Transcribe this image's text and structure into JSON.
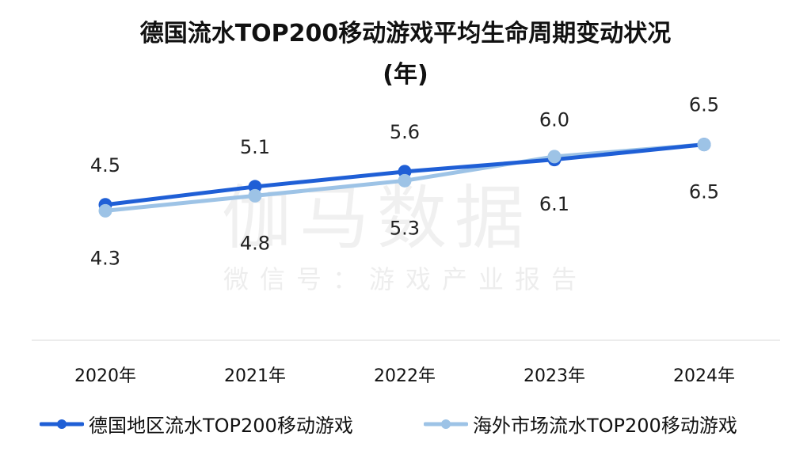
{
  "chart_data": {
    "type": "line",
    "title": "德国流水TOP200移动游戏平均生命周期变动状况",
    "subtitle": "(年)",
    "categories": [
      "2020年",
      "2021年",
      "2022年",
      "2023年",
      "2024年"
    ],
    "series": [
      {
        "name": "德国地区流水TOP200移动游戏",
        "values": [
          4.5,
          5.1,
          5.6,
          6.0,
          6.5
        ],
        "color": "#1f5fd6",
        "label_position": "above"
      },
      {
        "name": "海外市场流水TOP200移动游戏",
        "values": [
          4.3,
          4.8,
          5.3,
          6.1,
          6.5
        ],
        "color": "#9dc3e6",
        "label_position": "below"
      }
    ],
    "xlabel": "",
    "ylabel": "",
    "ylim": [
      0,
      11.3
    ],
    "grid": false,
    "legend": "bottom"
  },
  "watermark": {
    "brand": "伽马数据",
    "wechat": "微信号：游戏产业报告"
  }
}
